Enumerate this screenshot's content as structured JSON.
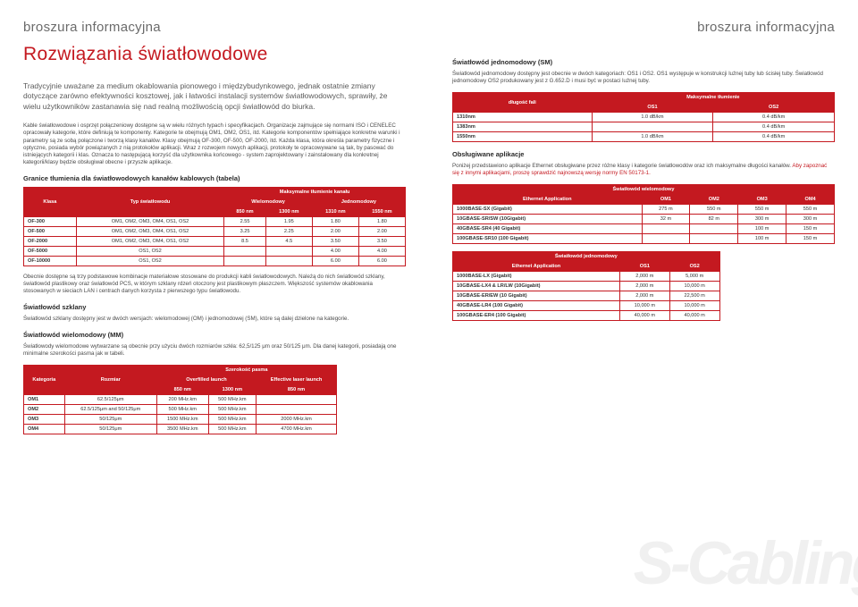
{
  "doc": {
    "header_label": "broszura informacyjna",
    "main_title": "Rozwiązania światłowodowe",
    "watermark": "S-Cabling"
  },
  "left": {
    "intro": "Tradycyjnie uważane za medium okablowania pionowego i międzybudynkowego, jednak ostatnie zmiany dotyczące zarówno efektywności kosztowej, jak i łatwości instalacji systemów światłowodowych, sprawiły, że wielu użytkowników zastanawia się nad realną możliwością opcji światłowód do biurka.",
    "p1": "Kable światłowodowe i osprzęt połączeniowy dostępne są w wielu różnych typach i specyfikacjach. Organizacje zajmujące się normami ISO i CENELEC opracowały kategorie, które definiują te komponenty. Kategorie te obejmują OM1, OM2, OS1, itd. Kategorie komponentów spełniające konkretne warunki i parametry są ze sobą połączone i tworzą klasy kanałów. Klasy obejmują OF-300, OF-500, OF-2000, itd. Każda klasa, która określa parametry fizyczne i optyczne, posiada wybór powiązanych z nią protokołów aplikacji. Wraz z rozwojem nowych aplikacji, protokoły te opracowywane są tak, by pasować do istniejących kategorii i klas. Oznacza to następującą korzyść dla użytkownika końcowego - system zaprojektowany i zainstalowany dla konkretnej kategorii/klasy będzie obsługiwał obecne i przyszłe aplikacje.",
    "h1": "Granice tłumienia dla światłowodowych kanałów kablowych (tabela)",
    "p2": "Obecnie dostępne są trzy podstawowe kombinacje materiałowe stosowane do produkcji kabli światłowodowych. Należą do nich światłowód szklany, światłowód plastikowy oraz światłowód PCS, w którym szklany rdzeń otoczony jest plastikowym płaszczem. Większość systemów okablowania stosowanych w sieciach LAN i centrach danych korzysta z pierwszego typu światłowodu.",
    "h2": "Światłowód szklany",
    "p3": "Światłowód szklany dostępny jest w dwóch wersjach: wielomodowej (OM) i jednomodowej (SM), które są dalej dzielone na kategorie.",
    "h3": "Światłowód wielomodowy (MM)",
    "p4": "Światłowody wielomodowe wytwarzane są obecnie przy użyciu dwóch rozmiarów szkła: 62,5/125 μm oraz 50/125 μm. Dla danej kategorii, posiadają one minimalne szerokości pasma jak w tabeli.",
    "table1": {
      "title": "Maksymalne tłumienie kanału",
      "head_r1": [
        "Klasa",
        "Typ światłowodu",
        "Wielomodowy",
        "",
        "Jednomodowy",
        ""
      ],
      "head_r2": [
        "",
        "",
        "850 nm",
        "1300 nm",
        "1310 nm",
        "1550 nm"
      ],
      "rows": [
        [
          "OF-300",
          "OM1, OM2, OM3, OM4, OS1, OS2",
          "2.55",
          "1.95",
          "1.80",
          "1.80"
        ],
        [
          "OF-500",
          "OM1, OM2, OM3, OM4, OS1, OS2",
          "3.25",
          "2.25",
          "2.00",
          "2.00"
        ],
        [
          "OF-2000",
          "OM1, OM2, OM3, OM4, OS1, OS2",
          "8.5",
          "4.5",
          "3.50",
          "3.50"
        ],
        [
          "OF-5000",
          "OS1, OS2",
          "",
          "",
          "4.00",
          "4.00"
        ],
        [
          "OF-10000",
          "OS1, OS2",
          "",
          "",
          "6.00",
          "6.00"
        ]
      ]
    },
    "table2": {
      "title": "Szerokość pasma",
      "head_r1": [
        "Kategoria",
        "Rozmiar",
        "Overfilled launch",
        "",
        "Effective laser launch"
      ],
      "head_r2": [
        "",
        "",
        "850 nm",
        "1300 nm",
        "850 nm"
      ],
      "rows": [
        [
          "OM1",
          "62.5/125μm",
          "200 MHz.km",
          "500 MHz.km",
          ""
        ],
        [
          "OM2",
          "62.5/125μm and 50/125μm",
          "500 MHz.km",
          "500 MHz.km",
          ""
        ],
        [
          "OM3",
          "50/125μm",
          "1500 MHz.km",
          "500 MHz.km",
          "2000 MHz.km"
        ],
        [
          "OM4",
          "50/125μm",
          "3500 MHz.km",
          "500 MHz.km",
          "4700 MHz.km"
        ]
      ]
    }
  },
  "right": {
    "h1": "Światłowód jednomodowy (SM)",
    "p1": "Światłowód jednomodowy dostępny jest obecnie w dwóch kategoriach: OS1 i OS2. OS1 występuje w konstrukcji luźnej tuby lub ścisłej tuby. Światłowód jednomodowy OS2 produkowany jest z G.652.D i musi być w postaci luźnej tuby.",
    "table3": {
      "title": "Maksymalne tłumienie",
      "head": [
        "długość fali",
        "OS1",
        "OS2"
      ],
      "rows": [
        [
          "1310nm",
          "1.0 dB/km",
          "0.4 dB/km"
        ],
        [
          "1383nm",
          "",
          "0.4 dB/km"
        ],
        [
          "1550nm",
          "1.0 dB/km",
          "0.4 dB/km"
        ]
      ]
    },
    "h2": "Obsługiwane aplikacje",
    "p2a": "Poniżej przedstawiono aplikacje Ethernet obsługiwane przez różne klasy i kategorie światłowodów oraz ich maksymalne długości kanałów.",
    "p2b": " Aby zapoznać się z innymi aplikacjami, proszę sprawdzić najnowszą wersję normy EN 50173-1.",
    "table4": {
      "title": "Światłowód wielomodowy",
      "head": [
        "Ethernet Application",
        "OM1",
        "OM2",
        "OM3",
        "OM4"
      ],
      "rows": [
        [
          "1000BASE-SX (Gigabit)",
          "275 m",
          "550 m",
          "550 m",
          "550 m"
        ],
        [
          "10GBASE-SR/SW (10Gigabit)",
          "32 m",
          "82 m",
          "300 m",
          "300 m"
        ],
        [
          "40GBASE-SR4 (40 Gigabit)",
          "",
          "",
          "100 m",
          "150 m"
        ],
        [
          "100GBASE-SR10 (100 Gigabit)",
          "",
          "",
          "100 m",
          "150 m"
        ]
      ]
    },
    "table5": {
      "title": "Światłowód jednomodowy",
      "head": [
        "Ethernet Application",
        "OS1",
        "OS2"
      ],
      "rows": [
        [
          "1000BASE-LX (Gigabit)",
          "2,000 m",
          "5,000 m"
        ],
        [
          "10GBASE-LX4 & LR/LW (10Gigabit)",
          "2,000 m",
          "10,000 m"
        ],
        [
          "10GBASE-ER/EW (10 Gigabit)",
          "2,000 m",
          "22,500 m"
        ],
        [
          "40GBASE-LR4 (100 Gigabit)",
          "10,000 m",
          "10,000 m"
        ],
        [
          "100GBASE-ER4 (100 Gigabit)",
          "40,000 m",
          "40,000 m"
        ]
      ]
    }
  }
}
